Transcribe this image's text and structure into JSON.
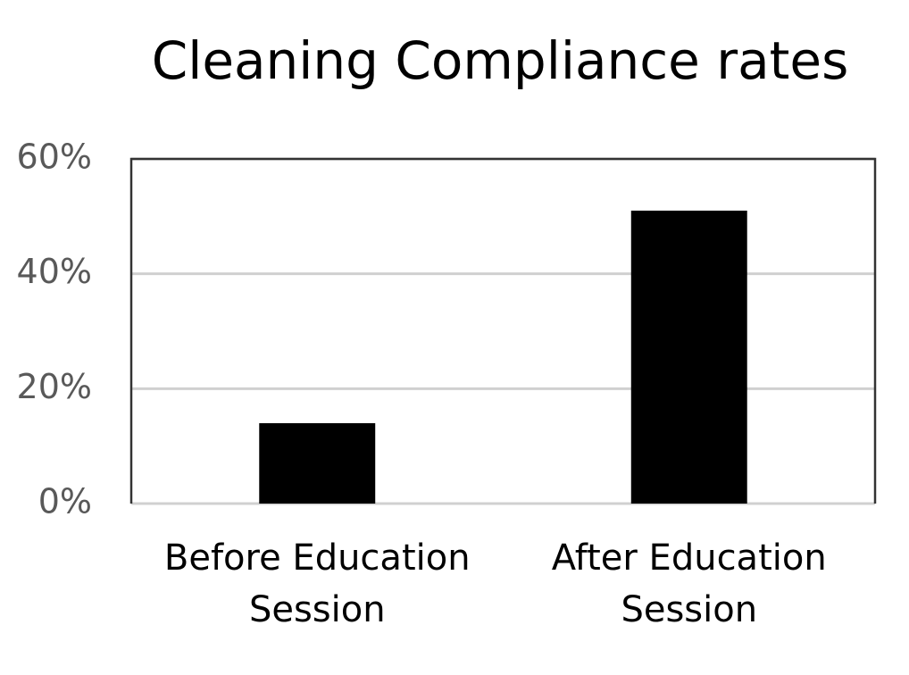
{
  "chart_data": {
    "type": "bar",
    "title": "Cleaning Compliance rates",
    "categories": [
      "Before Education Session",
      "After Education Session"
    ],
    "values": [
      14,
      51
    ],
    "color": "#000000",
    "ylim": [
      0,
      60
    ],
    "yticks": [
      {
        "value": 0,
        "label": "0%"
      },
      {
        "value": 20,
        "label": "20%"
      },
      {
        "value": 40,
        "label": "40%"
      },
      {
        "value": 60,
        "label": "60%"
      }
    ],
    "grid": true
  }
}
